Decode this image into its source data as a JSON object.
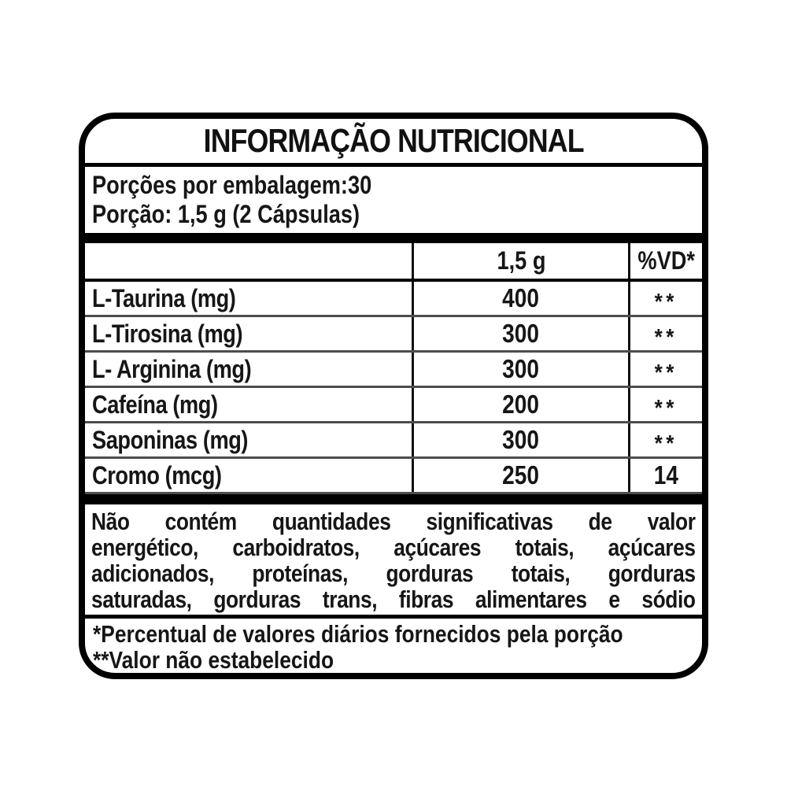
{
  "label": {
    "title": "INFORMAÇÃO NUTRICIONAL",
    "servings": {
      "per_package": "Porções por embalagem:30",
      "portion": "Porção: 1,5 g (2 Cápsulas)"
    },
    "table": {
      "columns": [
        "",
        "1,5 g",
        "%VD*"
      ],
      "rows": [
        {
          "name": "L-Taurina (mg)",
          "amount": "400",
          "vd": "**"
        },
        {
          "name": "L-Tirosina (mg)",
          "amount": "300",
          "vd": "**"
        },
        {
          "name": "L- Arginina (mg)",
          "amount": "300",
          "vd": "**"
        },
        {
          "name": "Cafeína (mg)",
          "amount": "200",
          "vd": "**"
        },
        {
          "name": "Saponinas (mg)",
          "amount": "300",
          "vd": "**"
        },
        {
          "name": "Cromo (mcg)",
          "amount": "250",
          "vd": "14"
        }
      ]
    },
    "disclaimer": {
      "lines": [
        "Não contém quantidades significativas de valor",
        "energético, carboidratos, açúcares totais, açúcares",
        "adicionados, proteínas, gorduras totais, gorduras",
        "saturadas, gorduras trans, fibras alimentares e sódio"
      ]
    },
    "footnotes": [
      "*Percentual de valores diários fornecidos pela porção",
      "**Valor não estabelecido"
    ],
    "colors": {
      "border": "#000000",
      "text": "#161616",
      "row_line": "#4d4d4d",
      "background": "#ffffff"
    }
  }
}
